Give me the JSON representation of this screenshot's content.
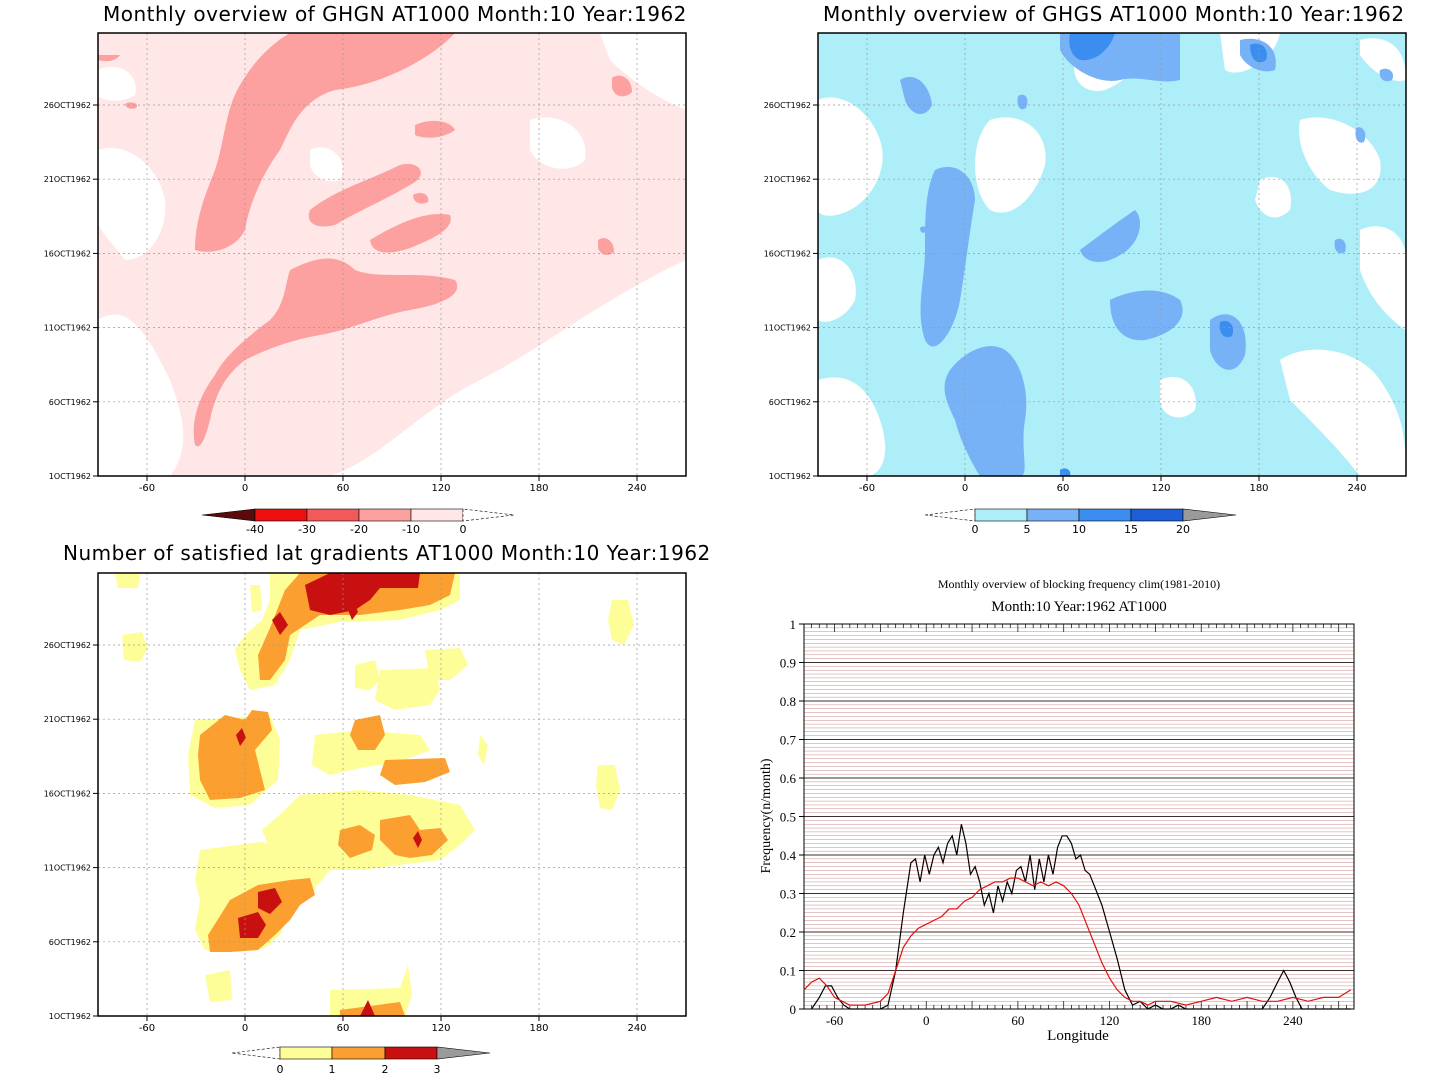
{
  "panels": {
    "ghgn": {
      "title": "Monthly overview of GHGN AT1000 Month:10 Year:1962",
      "colorbar_labels": [
        "-40",
        "-30",
        "-20",
        "-10",
        "0"
      ],
      "colors": [
        "#5a0a0a",
        "#ee1010",
        "#f25a5a",
        "#fca0a0",
        "#ffe7e7"
      ]
    },
    "ghgs": {
      "title": "Monthly overview of GHGS AT1000 Month:10 Year:1962",
      "colorbar_labels": [
        "0",
        "5",
        "10",
        "15",
        "20"
      ],
      "colors": [
        "#aeeef8",
        "#78b2f6",
        "#3b8ef0",
        "#1e5ed8",
        "#9a9a9a"
      ]
    },
    "gradients": {
      "title": "Number of satisfied lat gradients AT1000 Month:10 Year:1962",
      "colorbar_labels": [
        "0",
        "1",
        "2",
        "3"
      ],
      "colors": [
        "#fefe98",
        "#fba030",
        "#c81010",
        "#9a9a9a"
      ]
    }
  },
  "map_axes": {
    "x_ticks": [
      "-60",
      "0",
      "60",
      "120",
      "180",
      "240"
    ],
    "y_ticks": [
      "1OCT1962",
      "6OCT1962",
      "11OCT1962",
      "16OCT1962",
      "21OCT1962",
      "26OCT1962"
    ]
  },
  "chart_data": [
    {
      "type": "line",
      "title": "Monthly overview of blocking frequency clim(1981-2010)",
      "subtitle": "Month:10 Year:1962  AT1000",
      "xlabel": "Longitude",
      "ylabel": "Frequency(n/month)",
      "xlim": [
        -80,
        280
      ],
      "ylim": [
        0,
        1
      ],
      "x_ticks": [
        "-60",
        "0",
        "60",
        "120",
        "180",
        "240"
      ],
      "y_ticks": [
        "0",
        "0.1",
        "0.2",
        "0.3",
        "0.4",
        "0.5",
        "0.6",
        "0.7",
        "0.8",
        "0.9",
        "1"
      ],
      "grid": true,
      "series": [
        {
          "color": "#000000",
          "x": [
            -75,
            -70,
            -66,
            -62,
            -58,
            -54,
            -50,
            -40,
            -30,
            -25,
            -20,
            -15,
            -10,
            -7,
            -4,
            -1,
            2,
            5,
            8,
            11,
            14,
            17,
            20,
            23,
            26,
            29,
            32,
            35,
            38,
            41,
            44,
            47,
            50,
            53,
            56,
            59,
            62,
            65,
            68,
            71,
            74,
            77,
            80,
            83,
            86,
            89,
            92,
            95,
            98,
            101,
            104,
            107,
            110,
            115,
            120,
            125,
            130,
            135,
            140,
            145,
            150,
            155,
            160,
            165,
            170,
            175,
            180,
            190,
            200,
            210,
            220,
            225,
            230,
            234,
            238,
            242,
            246,
            250,
            260,
            270,
            278
          ],
          "y": [
            0,
            0.03,
            0.06,
            0.06,
            0.03,
            0.01,
            0,
            0,
            0,
            0.01,
            0.1,
            0.25,
            0.38,
            0.39,
            0.33,
            0.4,
            0.35,
            0.4,
            0.42,
            0.38,
            0.43,
            0.45,
            0.4,
            0.48,
            0.43,
            0.35,
            0.37,
            0.33,
            0.27,
            0.3,
            0.25,
            0.32,
            0.28,
            0.33,
            0.3,
            0.36,
            0.37,
            0.33,
            0.4,
            0.31,
            0.39,
            0.33,
            0.4,
            0.35,
            0.42,
            0.45,
            0.45,
            0.43,
            0.39,
            0.4,
            0.36,
            0.35,
            0.32,
            0.27,
            0.2,
            0.13,
            0.05,
            0.01,
            0.02,
            0,
            0.01,
            0,
            0,
            0.01,
            0,
            0,
            0,
            0,
            0,
            0,
            0,
            0.03,
            0.07,
            0.1,
            0.07,
            0.03,
            0,
            0,
            0,
            0,
            0
          ]
        },
        {
          "color": "#e01010",
          "x": [
            -80,
            -75,
            -70,
            -65,
            -60,
            -55,
            -50,
            -40,
            -30,
            -25,
            -20,
            -15,
            -10,
            -5,
            0,
            5,
            10,
            15,
            20,
            25,
            30,
            35,
            40,
            45,
            50,
            55,
            60,
            65,
            70,
            75,
            80,
            85,
            90,
            95,
            100,
            105,
            110,
            115,
            120,
            125,
            130,
            135,
            140,
            145,
            150,
            160,
            170,
            180,
            190,
            200,
            210,
            220,
            230,
            240,
            250,
            260,
            270,
            278
          ],
          "y": [
            0.05,
            0.07,
            0.08,
            0.06,
            0.03,
            0.02,
            0.01,
            0.01,
            0.02,
            0.04,
            0.1,
            0.16,
            0.19,
            0.21,
            0.22,
            0.23,
            0.24,
            0.26,
            0.26,
            0.28,
            0.29,
            0.31,
            0.32,
            0.33,
            0.33,
            0.34,
            0.34,
            0.33,
            0.32,
            0.33,
            0.32,
            0.33,
            0.32,
            0.3,
            0.27,
            0.22,
            0.17,
            0.12,
            0.08,
            0.05,
            0.03,
            0.02,
            0.02,
            0.01,
            0.02,
            0.02,
            0.01,
            0.02,
            0.03,
            0.02,
            0.03,
            0.02,
            0.02,
            0.03,
            0.02,
            0.03,
            0.03,
            0.05
          ]
        }
      ]
    }
  ]
}
